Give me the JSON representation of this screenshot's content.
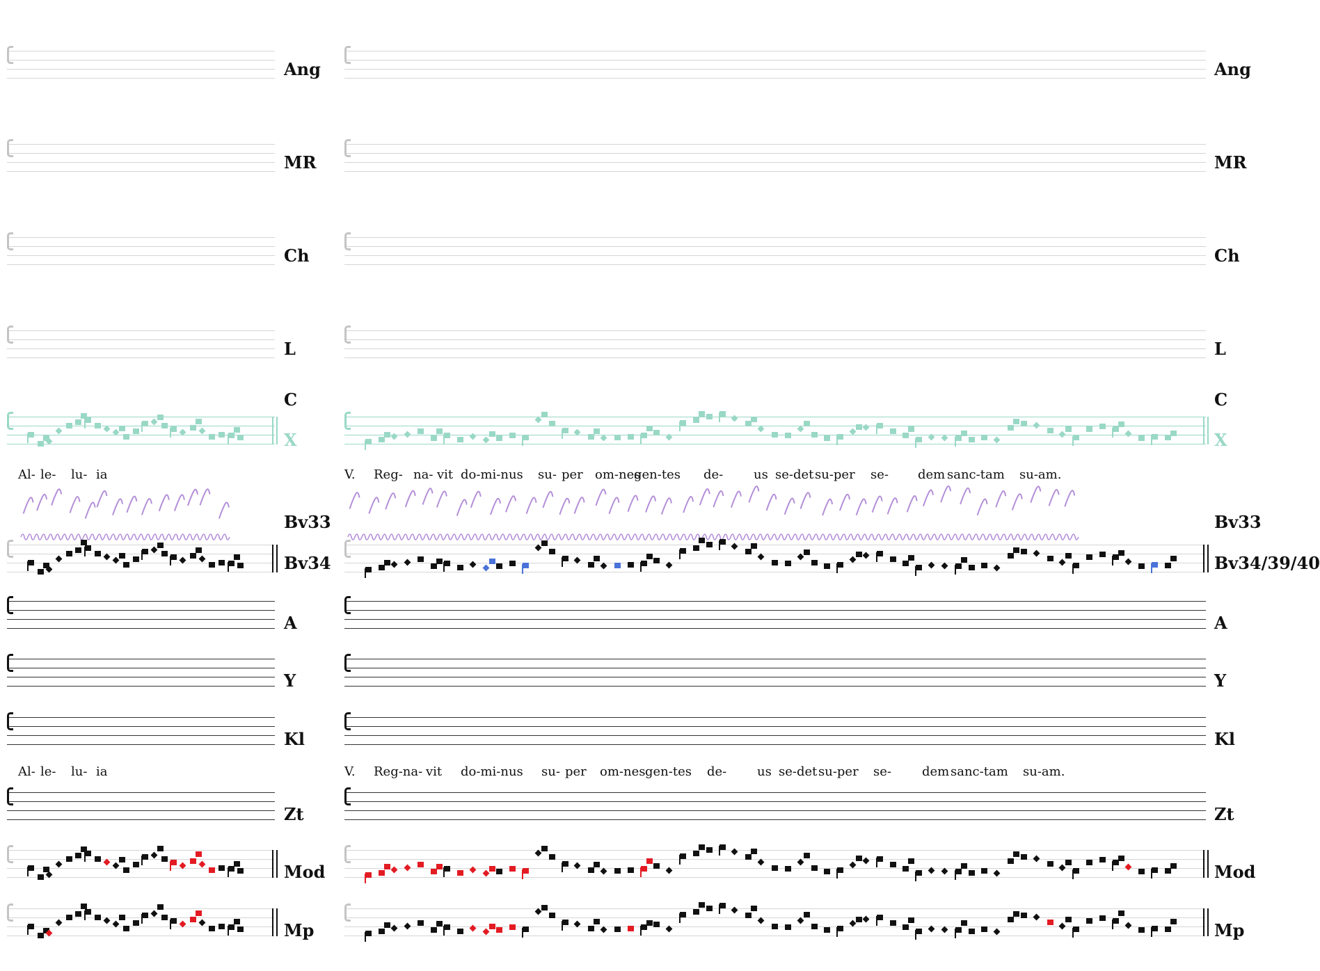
{
  "staves": [
    {
      "id": "Ang",
      "label": "Ang",
      "style": "empty"
    },
    {
      "id": "MR",
      "label": "MR",
      "style": "empty"
    },
    {
      "id": "Ch",
      "label": "Ch",
      "style": "empty"
    },
    {
      "id": "L",
      "label": "L",
      "style": "empty"
    },
    {
      "id": "C",
      "label": "C",
      "style": "label-only"
    },
    {
      "id": "X",
      "label": "X",
      "style": "teal"
    },
    {
      "id": "Bv33",
      "label": "Bv33",
      "style": "manuscript"
    },
    {
      "id": "Bv34",
      "label_left": "Bv34",
      "label_right": "Bv34/39/40",
      "style": "notated"
    },
    {
      "id": "A",
      "label": "A",
      "style": "empty-dark"
    },
    {
      "id": "Y",
      "label": "Y",
      "style": "empty-dark"
    },
    {
      "id": "Kl",
      "label": "Kl",
      "style": "empty-dark"
    },
    {
      "id": "Zt",
      "label": "Zt",
      "style": "empty-dark"
    },
    {
      "id": "Mod",
      "label": "Mod",
      "style": "notated"
    },
    {
      "id": "Mp",
      "label": "Mp",
      "style": "notated"
    }
  ],
  "lyrics_top": {
    "left": [
      "Al-",
      "le-",
      "lu-",
      "ia"
    ],
    "right": [
      "V.",
      "Reg-",
      "na-",
      "vit",
      "do-mi-nus",
      "su-",
      "per",
      "om-nes",
      "gen-tes",
      "de-",
      "us",
      "se-det",
      "su-per",
      "se-",
      "dem",
      "sanc-tam",
      "su-am."
    ]
  },
  "lyrics_bottom": {
    "left": [
      "Al-",
      "le-",
      "lu-",
      "ia"
    ],
    "right": [
      "V.",
      "Reg-na-",
      "vit",
      "do-mi-nus",
      "su-",
      "per",
      "om-nes",
      "gen-tes",
      "de-",
      "us",
      "se-det",
      "su-per",
      "se-",
      "dem",
      "sanc-tam",
      "su-am."
    ]
  },
  "colors": {
    "ink": "#111111",
    "variant_red": "#e31b23",
    "variant_blue": "#4a72d8",
    "source_teal": "#9ad8c6",
    "manuscript_violet": "#b48fd8",
    "empty_staff_gray": "#d5d5d5"
  },
  "icons": [
    "c-clef-icon",
    "barline-icon"
  ]
}
